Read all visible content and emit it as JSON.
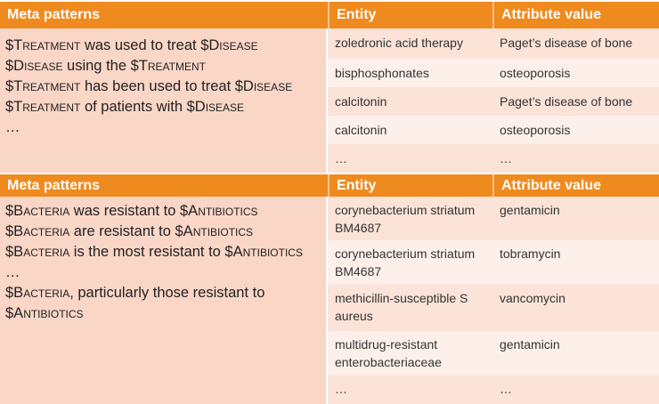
{
  "colors": {
    "header": "#ef8a1f",
    "meta_bg": "#f9d6c6",
    "row_a": "#fbe3d8",
    "row_b": "#fdf0ea"
  },
  "tables": [
    {
      "headers": {
        "meta": "Meta patterns",
        "entity": "Entity",
        "attribute": "Attribute value"
      },
      "patterns": [
        [
          {
            "t": "$T",
            "sc": false
          },
          {
            "t": "reatment",
            "sc": true
          },
          {
            "t": " was used to treat $D",
            "sc": false
          },
          {
            "t": "isease",
            "sc": true
          }
        ],
        [
          {
            "t": "$D",
            "sc": false
          },
          {
            "t": "isease",
            "sc": true
          },
          {
            "t": " using the $T",
            "sc": false
          },
          {
            "t": "reatment",
            "sc": true
          }
        ],
        [
          {
            "t": "$T",
            "sc": false
          },
          {
            "t": "reatment",
            "sc": true
          },
          {
            "t": " has been used to treat $D",
            "sc": false
          },
          {
            "t": "isease",
            "sc": true
          }
        ],
        [
          {
            "t": "$T",
            "sc": false
          },
          {
            "t": "reatment",
            "sc": true
          },
          {
            "t": " of patients with $D",
            "sc": false
          },
          {
            "t": "isease",
            "sc": true
          }
        ],
        [
          {
            "t": "…",
            "sc": false
          }
        ]
      ],
      "rows": [
        {
          "entity": "zoledronic acid therapy",
          "attribute": "Paget’s disease of bone"
        },
        {
          "entity": "bisphosphonates",
          "attribute": "osteoporosis"
        },
        {
          "entity": "calcitonin",
          "attribute": "Paget’s disease of bone"
        },
        {
          "entity": "calcitonin",
          "attribute": "osteoporosis"
        },
        {
          "entity": "…",
          "attribute": "…"
        }
      ]
    },
    {
      "headers": {
        "meta": "Meta patterns",
        "entity": "Entity",
        "attribute": "Attribute value"
      },
      "patterns": [
        [
          {
            "t": "$B",
            "sc": false
          },
          {
            "t": "acteria",
            "sc": true
          },
          {
            "t": " was resistant to $A",
            "sc": false
          },
          {
            "t": "ntibiotics",
            "sc": true
          }
        ],
        [
          {
            "t": "$B",
            "sc": false
          },
          {
            "t": "acteria",
            "sc": true
          },
          {
            "t": " are resistant to $A",
            "sc": false
          },
          {
            "t": "ntibiotics",
            "sc": true
          }
        ],
        [
          {
            "t": "$B",
            "sc": false
          },
          {
            "t": "acteria",
            "sc": true
          },
          {
            "t": " is the most resistant to $A",
            "sc": false
          },
          {
            "t": "ntibiotics",
            "sc": true
          }
        ],
        [
          {
            "t": "…",
            "sc": false
          }
        ],
        [
          {
            "t": "$B",
            "sc": false
          },
          {
            "t": "acteria",
            "sc": true
          },
          {
            "t": ", particularly those resistant to",
            "sc": false
          }
        ],
        [
          {
            "t": "$A",
            "sc": false
          },
          {
            "t": "ntibiotics",
            "sc": true
          }
        ]
      ],
      "rows": [
        {
          "entity": "corynebacterium striatum BM4687",
          "attribute": "gentamicin"
        },
        {
          "entity": "corynebacterium striatum BM4687",
          "attribute": "tobramycin"
        },
        {
          "entity": "methicillin-susceptible S aureus",
          "attribute": "vancomycin"
        },
        {
          "entity": "multidrug-resistant enterobacteriaceae",
          "attribute": "gentamicin"
        },
        {
          "entity": "…",
          "attribute": "…"
        }
      ]
    }
  ]
}
